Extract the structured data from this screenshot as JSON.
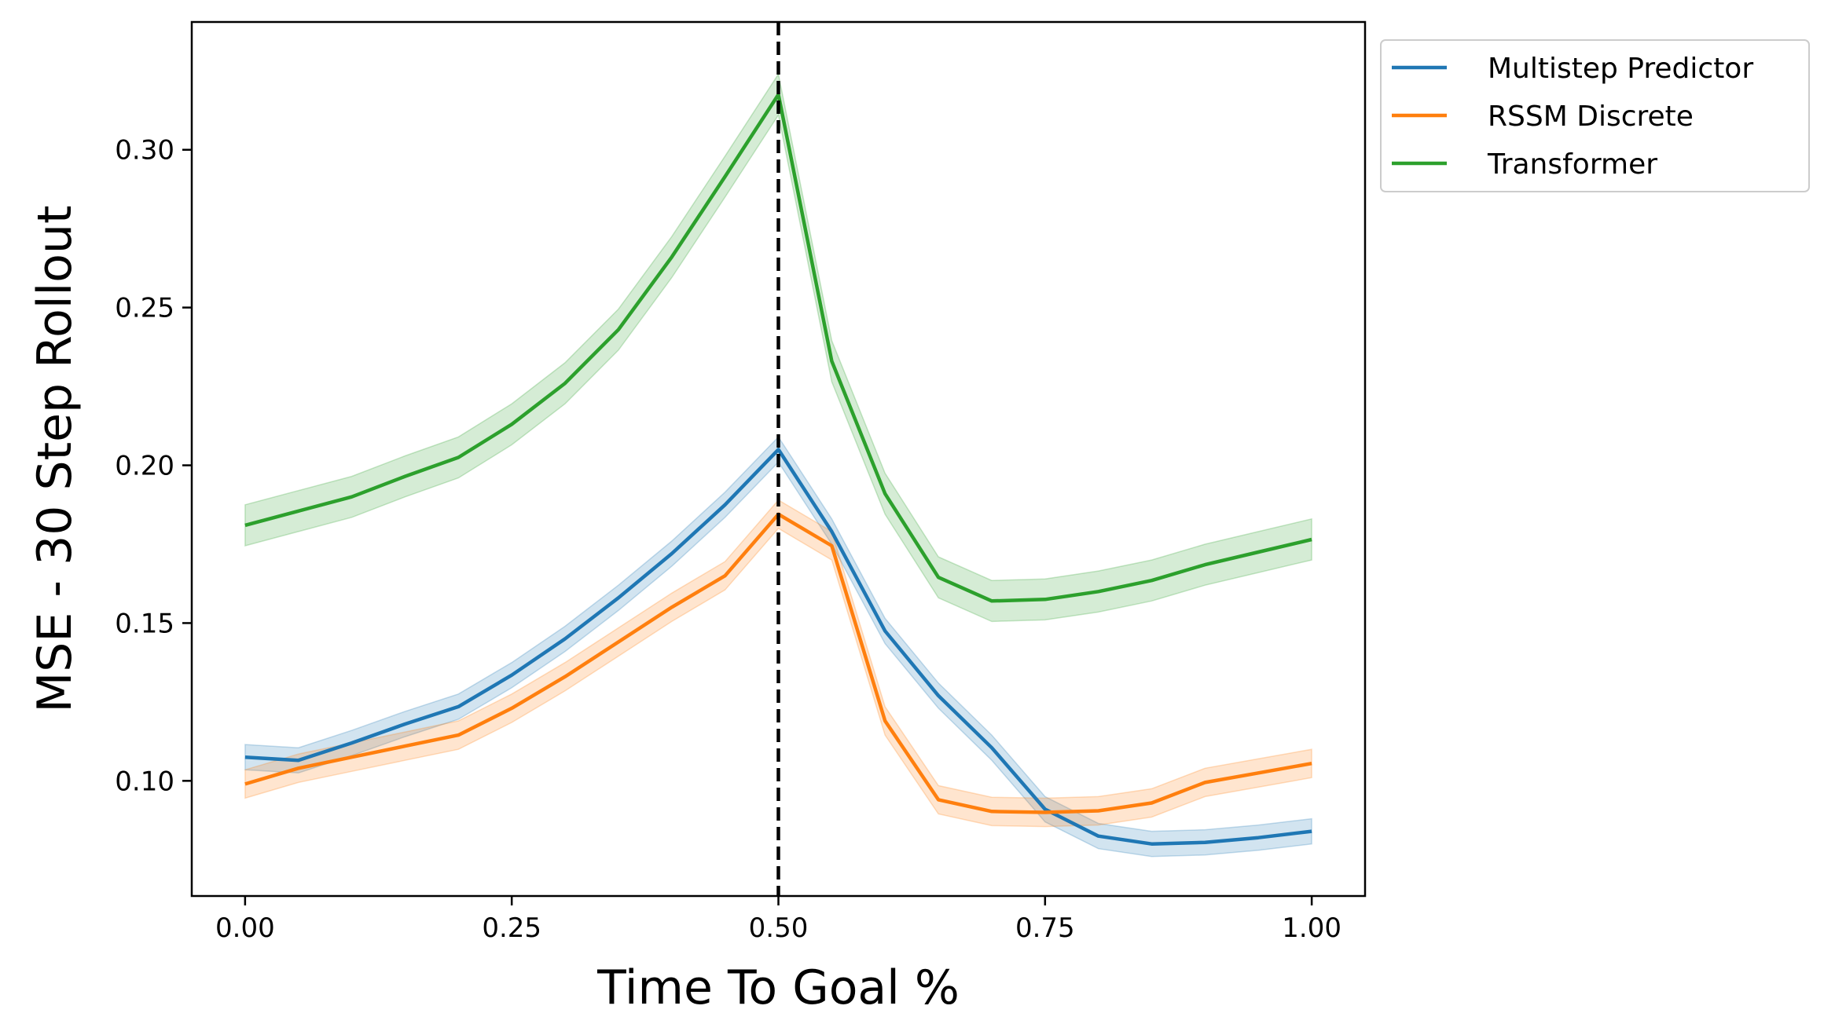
{
  "chart_data": {
    "type": "line",
    "title": "",
    "xlabel": "Time To Goal %",
    "ylabel": "MSE - 30 Step Rollout",
    "xlim": [
      -0.05,
      1.05
    ],
    "ylim": [
      0.0635,
      0.3405
    ],
    "xticks": [
      0.0,
      0.25,
      0.5,
      0.75,
      1.0
    ],
    "xtick_labels": [
      "0.00",
      "0.25",
      "0.50",
      "0.75",
      "1.00"
    ],
    "yticks": [
      0.1,
      0.15,
      0.2,
      0.25,
      0.3
    ],
    "ytick_labels": [
      "0.10",
      "0.15",
      "0.20",
      "0.25",
      "0.30"
    ],
    "grid": false,
    "legend_position": "outside upper-right",
    "vline": {
      "x": 0.5,
      "style": "dashed",
      "color": "#000000"
    },
    "x": [
      0.0,
      0.05,
      0.1,
      0.15,
      0.2,
      0.25,
      0.3,
      0.35,
      0.4,
      0.45,
      0.5,
      0.55,
      0.6,
      0.65,
      0.7,
      0.75,
      0.8,
      0.85,
      0.9,
      0.95,
      1.0
    ],
    "series": [
      {
        "name": "Multistep Predictor",
        "color": "#1f77b4",
        "values": [
          0.1075,
          0.1065,
          0.112,
          0.118,
          0.1235,
          0.1335,
          0.145,
          0.158,
          0.172,
          0.1875,
          0.205,
          0.179,
          0.1475,
          0.127,
          0.1105,
          0.091,
          0.0825,
          0.08,
          0.0805,
          0.082,
          0.084
        ],
        "band": 0.004
      },
      {
        "name": "RSSM Discrete",
        "color": "#ff7f0e",
        "values": [
          0.099,
          0.104,
          0.1075,
          0.111,
          0.1145,
          0.123,
          0.133,
          0.144,
          0.155,
          0.165,
          0.1845,
          0.1745,
          0.119,
          0.094,
          0.0903,
          0.09,
          0.0905,
          0.093,
          0.0995,
          0.1025,
          0.1055
        ],
        "band": 0.0045
      },
      {
        "name": "Transformer",
        "color": "#2ca02c",
        "values": [
          0.181,
          0.1855,
          0.19,
          0.1965,
          0.2025,
          0.213,
          0.226,
          0.243,
          0.266,
          0.2915,
          0.3175,
          0.233,
          0.191,
          0.1645,
          0.157,
          0.1575,
          0.16,
          0.1635,
          0.1685,
          0.1725,
          0.1765
        ],
        "band": 0.0065
      }
    ]
  }
}
